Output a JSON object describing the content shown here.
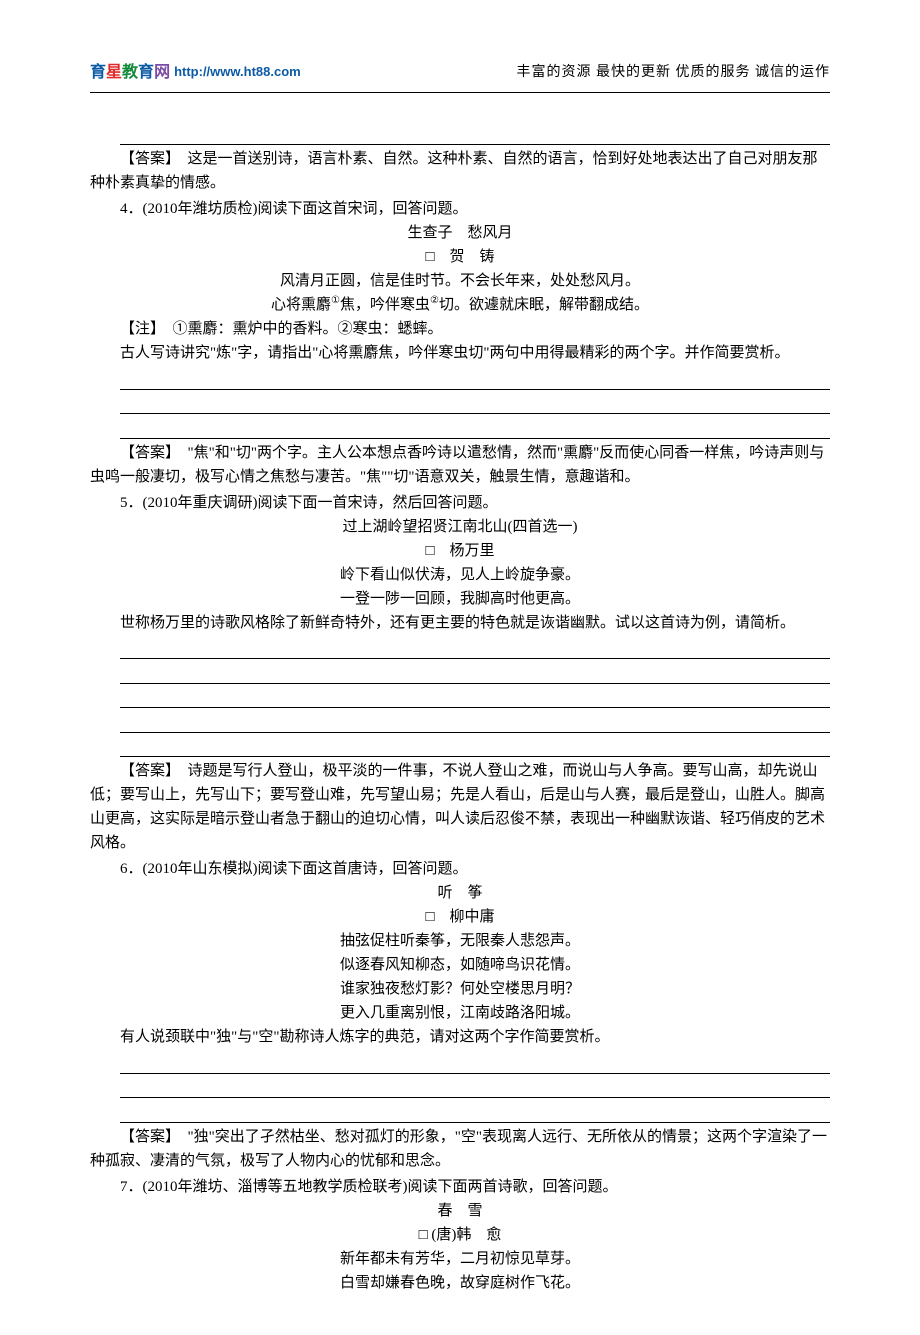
{
  "header": {
    "logo_chars": [
      "育",
      "星",
      "教",
      "育",
      "网"
    ],
    "logo_url": "http://www.ht88.com",
    "slogan": "丰富的资源  最快的更新  优质的服务  诚信的运作"
  },
  "q3": {
    "ans_label": "【答案】",
    "ans_text": "　这是一首送别诗，语言朴素、自然。这种朴素、自然的语言，恰到好处地表达出了自己对朋友那种朴素真挚的情感。"
  },
  "q4": {
    "stem": "4．(2010年潍坊质检)阅读下面这首宋词，回答问题。",
    "title": "生查子　愁风月",
    "author": "□　贺　铸",
    "line1": "风清月正圆，信是佳时节。不会长年来，处处愁风月。",
    "line2_a": "心将熏麝",
    "line2_b": "焦，吟伴寒虫",
    "line2_c": "切。欲遽就床眠，解带翻成结。",
    "note_label": "【注】",
    "note_text": "　①熏麝：熏炉中的香料。②寒虫：蟋蟀。",
    "prompt": "古人写诗讲究\"炼\"字，请指出\"心将熏麝焦，吟伴寒虫切\"两句中用得最精彩的两个字。并作简要赏析。",
    "ans_label": "【答案】",
    "ans_text": "　\"焦\"和\"切\"两个字。主人公本想点香吟诗以遣愁情，然而\"熏麝\"反而使心同香一样焦，吟诗声则与虫鸣一般凄切，极写心情之焦愁与凄苦。\"焦\"\"切\"语意双关，触景生情，意趣谐和。"
  },
  "q5": {
    "stem": "5．(2010年重庆调研)阅读下面一首宋诗，然后回答问题。",
    "title_a": "过上湖岭望招贤江南北山",
    "title_b": "(四首选一)",
    "author": "□　杨万里",
    "line1": "岭下看山似伏涛，见人上岭旋争豪。",
    "line2": "一登一陟一回顾，我脚高时他更高。",
    "prompt": "世称杨万里的诗歌风格除了新鲜奇特外，还有更主要的特色就是诙谐幽默。试以这首诗为例，请简析。",
    "ans_label": "【答案】",
    "ans_text": "　诗题是写行人登山，极平淡的一件事，不说人登山之难，而说山与人争高。要写山高，却先说山低；要写山上，先写山下；要写登山难，先写望山易；先是人看山，后是山与人赛，最后是登山，山胜人。脚高山更高，这实际是暗示登山者急于翻山的迫切心情，叫人读后忍俊不禁，表现出一种幽默诙谐、轻巧俏皮的艺术风格。"
  },
  "q6": {
    "stem": "6．(2010年山东模拟)阅读下面这首唐诗，回答问题。",
    "title": "听　筝",
    "author": "□　柳中庸",
    "line1": "抽弦促柱听秦筝，无限秦人悲怨声。",
    "line2": "似逐春风知柳态，如随啼鸟识花情。",
    "line3": "谁家独夜愁灯影？何处空楼思月明？",
    "line4": "更入几重离别恨，江南歧路洛阳城。",
    "prompt": "有人说颈联中\"独\"与\"空\"勘称诗人炼字的典范，请对这两个字作简要赏析。",
    "ans_label": "【答案】",
    "ans_text": "　\"独\"突出了孑然枯坐、愁对孤灯的形象，\"空\"表现离人远行、无所依从的情景；这两个字渲染了一种孤寂、凄清的气氛，极写了人物内心的忧郁和思念。"
  },
  "q7": {
    "stem": "7．(2010年潍坊、淄博等五地教学质检联考)阅读下面两首诗歌，回答问题。",
    "title": "春　雪",
    "author": "□ (唐)韩　愈",
    "line1": "新年都未有芳华，二月初惊见草芽。",
    "line2": "白雪却嫌春色晚，故穿庭树作飞花。"
  }
}
